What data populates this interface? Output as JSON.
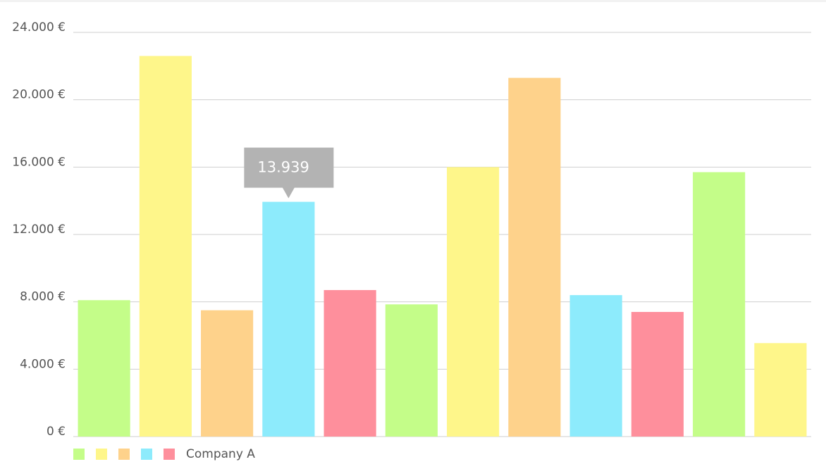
{
  "chart_data": {
    "type": "bar",
    "categories": [
      null,
      null,
      null,
      null,
      null,
      null,
      null,
      null,
      null,
      null,
      null,
      null
    ],
    "series": [
      {
        "name": "Company A",
        "colors": [
          "#c4fd89",
          "#fef68a",
          "#fed28b",
          "#8debfc",
          "#fe8f9c"
        ],
        "values": [
          8100,
          22600,
          7500,
          13939,
          8700,
          7850,
          16000,
          21300,
          8400,
          7400,
          15700,
          5550
        ],
        "value_labels": [
          null,
          null,
          null,
          "13.939",
          null,
          null,
          null,
          null,
          null,
          null,
          null,
          null
        ]
      }
    ],
    "ylim": [
      0,
      24000
    ],
    "yticks": [
      {
        "value": 0,
        "label": "0 €"
      },
      {
        "value": 4000,
        "label": "4.000 €"
      },
      {
        "value": 8000,
        "label": "8.000 €"
      },
      {
        "value": 12000,
        "label": "12.000 €"
      },
      {
        "value": 16000,
        "label": "16.000 €"
      },
      {
        "value": 20000,
        "label": "20.000 €"
      },
      {
        "value": 24000,
        "label": "24.000 €"
      }
    ],
    "grid": true
  }
}
